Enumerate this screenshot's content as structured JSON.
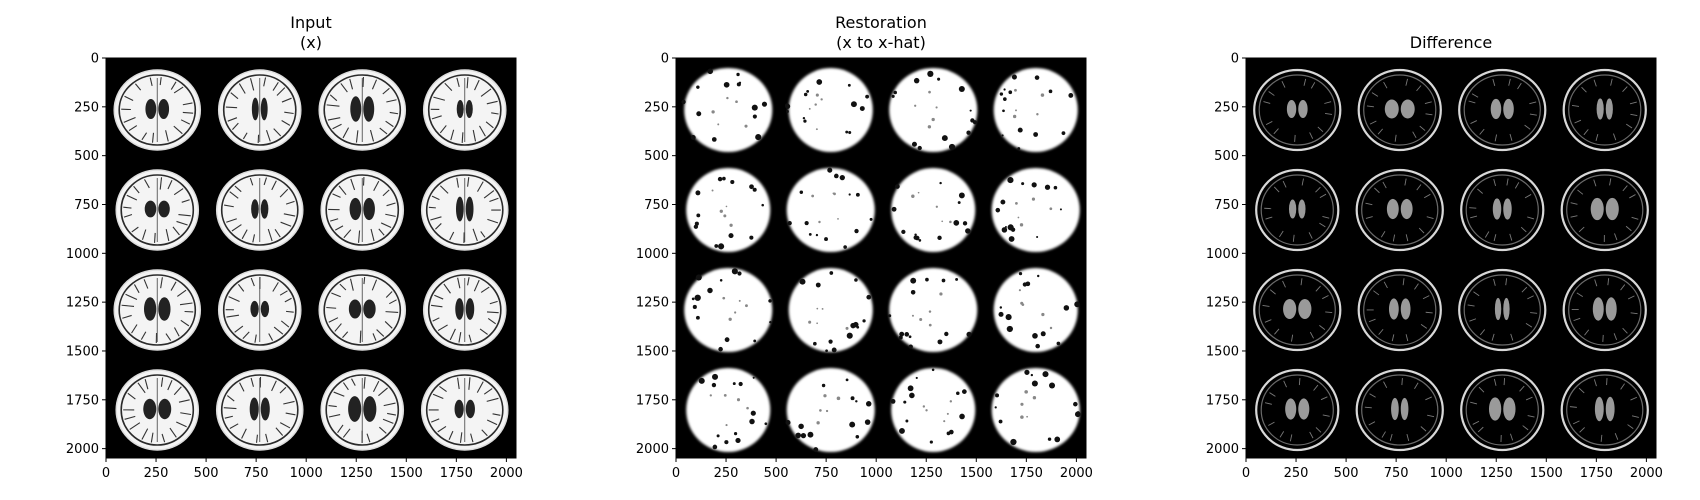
{
  "figure": {
    "panels": [
      {
        "id": "input",
        "title_line1": "Input",
        "title_line2": "(x)",
        "kind": "input"
      },
      {
        "id": "restoration",
        "title_line1": "Restoration",
        "title_line2": "(x to x-hat)",
        "kind": "restoration"
      },
      {
        "id": "difference",
        "title_line1": "",
        "title_line2": "Difference",
        "kind": "difference"
      }
    ],
    "image_extent": [
      0,
      2048
    ],
    "x_ticks": [
      "0",
      "250",
      "500",
      "750",
      "1000",
      "1250",
      "1500",
      "1750",
      "2000"
    ],
    "y_ticks": [
      "0",
      "250",
      "500",
      "750",
      "1000",
      "1250",
      "1500",
      "1750",
      "2000"
    ],
    "tick_values": [
      0,
      250,
      500,
      750,
      1000,
      1250,
      1500,
      1750,
      2000
    ],
    "grid": {
      "rows": 4,
      "cols": 4,
      "content": "axial brain MRI slices"
    },
    "colors": {
      "background": "#000000",
      "foreground": "#ffffff",
      "axis": "#000000"
    }
  }
}
